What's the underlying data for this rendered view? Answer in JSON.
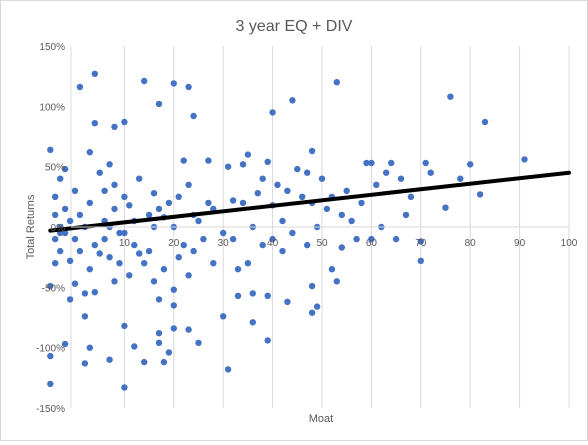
{
  "chart_data": {
    "type": "scatter",
    "title": "3 year EQ + DIV",
    "xlabel": "Moat",
    "ylabel": "Total Returns",
    "xlim": [
      0,
      100
    ],
    "ylim": [
      -150,
      150
    ],
    "x_ticks": [
      "10",
      "20",
      "30",
      "40",
      "50",
      "60",
      "70",
      "80",
      "90",
      "100"
    ],
    "y_ticks": [
      "150%",
      "100%",
      "50%",
      "0%",
      "-50%",
      "-100%",
      "-150%"
    ],
    "grid": "vertical",
    "legend": "none",
    "colors": {
      "points": "#4472c4",
      "trendline": "#000000",
      "grid": "#d9d9d9",
      "text": "#595959"
    },
    "trendline": {
      "x": [
        -5,
        100
      ],
      "y": [
        -3,
        45
      ]
    },
    "points": [
      [
        -5,
        64
      ],
      [
        -5,
        -130
      ],
      [
        -5,
        -107
      ],
      [
        -5,
        -49
      ],
      [
        -4,
        -30
      ],
      [
        -4,
        -10
      ],
      [
        -4,
        10
      ],
      [
        -4,
        25
      ],
      [
        -3,
        -20
      ],
      [
        -3,
        40
      ],
      [
        -3,
        -5
      ],
      [
        -3,
        0
      ],
      [
        -2,
        -97
      ],
      [
        -2,
        48
      ],
      [
        -2,
        -5
      ],
      [
        -2,
        15
      ],
      [
        -1,
        -28
      ],
      [
        -1,
        -60
      ],
      [
        -1,
        5
      ],
      [
        0,
        -47
      ],
      [
        0,
        30
      ],
      [
        0,
        -10
      ],
      [
        1,
        116
      ],
      [
        1,
        -20
      ],
      [
        1,
        10
      ],
      [
        2,
        -113
      ],
      [
        2,
        -74
      ],
      [
        2,
        -55
      ],
      [
        2,
        0
      ],
      [
        3,
        62
      ],
      [
        3,
        -100
      ],
      [
        3,
        -35
      ],
      [
        3,
        20
      ],
      [
        4,
        86
      ],
      [
        4,
        127
      ],
      [
        4,
        -54
      ],
      [
        4,
        -15
      ],
      [
        5,
        -22
      ],
      [
        5,
        45
      ],
      [
        6,
        -10
      ],
      [
        6,
        30
      ],
      [
        6,
        5
      ],
      [
        7,
        -110
      ],
      [
        7,
        52
      ],
      [
        7,
        -25
      ],
      [
        7,
        0
      ],
      [
        8,
        83
      ],
      [
        8,
        -45
      ],
      [
        8,
        35
      ],
      [
        8,
        15
      ],
      [
        9,
        -5
      ],
      [
        9,
        -30
      ],
      [
        10,
        -133
      ],
      [
        10,
        -82
      ],
      [
        10,
        87
      ],
      [
        10,
        25
      ],
      [
        10,
        -5
      ],
      [
        11,
        18
      ],
      [
        11,
        -40
      ],
      [
        12,
        -99
      ],
      [
        12,
        5
      ],
      [
        12,
        -15
      ],
      [
        13,
        -22
      ],
      [
        13,
        40
      ],
      [
        14,
        121
      ],
      [
        14,
        -112
      ],
      [
        14,
        -30
      ],
      [
        15,
        10
      ],
      [
        15,
        -20
      ],
      [
        16,
        28
      ],
      [
        16,
        -45
      ],
      [
        16,
        0
      ],
      [
        17,
        -96
      ],
      [
        17,
        -88
      ],
      [
        17,
        -60
      ],
      [
        17,
        102
      ],
      [
        17,
        15
      ],
      [
        18,
        -112
      ],
      [
        18,
        8
      ],
      [
        18,
        -35
      ],
      [
        19,
        -104
      ],
      [
        19,
        20
      ],
      [
        20,
        -84
      ],
      [
        20,
        -65
      ],
      [
        20,
        119
      ],
      [
        20,
        -52
      ],
      [
        20,
        0
      ],
      [
        21,
        25
      ],
      [
        21,
        -25
      ],
      [
        22,
        -15
      ],
      [
        22,
        55
      ],
      [
        23,
        -85
      ],
      [
        23,
        116
      ],
      [
        23,
        -40
      ],
      [
        23,
        35
      ],
      [
        24,
        92
      ],
      [
        24,
        -20
      ],
      [
        24,
        10
      ],
      [
        25,
        -96
      ],
      [
        25,
        5
      ],
      [
        26,
        -10
      ],
      [
        27,
        55
      ],
      [
        27,
        20
      ],
      [
        28,
        -30
      ],
      [
        28,
        15
      ],
      [
        30,
        -74
      ],
      [
        30,
        -5
      ],
      [
        31,
        -118
      ],
      [
        31,
        50
      ],
      [
        32,
        -10
      ],
      [
        32,
        22
      ],
      [
        33,
        -57
      ],
      [
        33,
        -35
      ],
      [
        34,
        52
      ],
      [
        34,
        20
      ],
      [
        35,
        -30
      ],
      [
        35,
        60
      ],
      [
        36,
        -79
      ],
      [
        36,
        -55
      ],
      [
        36,
        0
      ],
      [
        37,
        28
      ],
      [
        38,
        -15
      ],
      [
        38,
        40
      ],
      [
        39,
        -57
      ],
      [
        39,
        -94
      ],
      [
        39,
        54
      ],
      [
        40,
        95
      ],
      [
        40,
        -10
      ],
      [
        40,
        18
      ],
      [
        41,
        35
      ],
      [
        42,
        -20
      ],
      [
        42,
        5
      ],
      [
        43,
        -62
      ],
      [
        43,
        30
      ],
      [
        44,
        105
      ],
      [
        44,
        -5
      ],
      [
        45,
        48
      ],
      [
        46,
        25
      ],
      [
        47,
        -15
      ],
      [
        47,
        45
      ],
      [
        48,
        -49
      ],
      [
        48,
        -71
      ],
      [
        48,
        63
      ],
      [
        48,
        20
      ],
      [
        49,
        -66
      ],
      [
        49,
        0
      ],
      [
        50,
        40
      ],
      [
        51,
        15
      ],
      [
        52,
        -35
      ],
      [
        52,
        25
      ],
      [
        53,
        -45
      ],
      [
        53,
        120
      ],
      [
        54,
        10
      ],
      [
        54,
        -17
      ],
      [
        55,
        30
      ],
      [
        56,
        5
      ],
      [
        57,
        -10
      ],
      [
        58,
        20
      ],
      [
        59,
        53
      ],
      [
        60,
        53
      ],
      [
        60,
        -10
      ],
      [
        61,
        35
      ],
      [
        62,
        0
      ],
      [
        63,
        45
      ],
      [
        64,
        53
      ],
      [
        65,
        -10
      ],
      [
        66,
        40
      ],
      [
        67,
        10
      ],
      [
        68,
        25
      ],
      [
        70,
        -28
      ],
      [
        70,
        -12
      ],
      [
        71,
        53
      ],
      [
        72,
        45
      ],
      [
        75,
        16
      ],
      [
        76,
        108
      ],
      [
        78,
        40
      ],
      [
        80,
        52
      ],
      [
        82,
        27
      ],
      [
        83,
        87
      ],
      [
        91,
        56
      ]
    ]
  }
}
